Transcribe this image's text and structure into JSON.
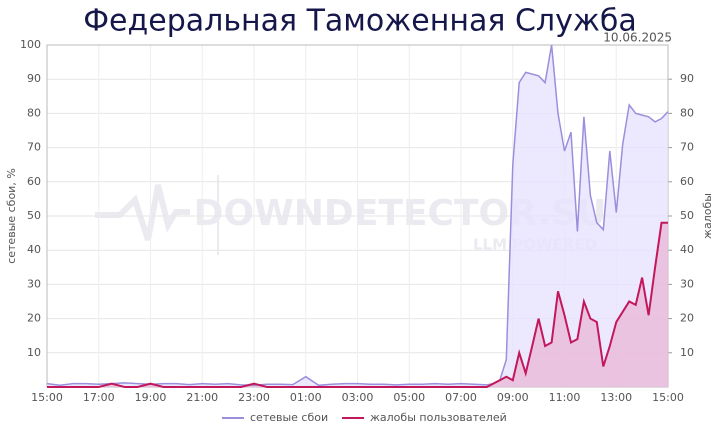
{
  "chart_data": {
    "type": "line",
    "title": "Федеральная Таможенная Служба",
    "date": "10.06.2025",
    "watermark": "DOWNDETECTOR.SU",
    "watermark_sub": "LLM POWERED",
    "ylabel": "сетевые сбои, %",
    "y2label": "жалобы",
    "xlim": [
      0,
      24
    ],
    "xticks": [
      {
        "value": 0,
        "label": "15:00"
      },
      {
        "value": 2,
        "label": "17:00"
      },
      {
        "value": 4,
        "label": "19:00"
      },
      {
        "value": 6,
        "label": "21:00"
      },
      {
        "value": 8,
        "label": "23:00"
      },
      {
        "value": 10,
        "label": "01:00"
      },
      {
        "value": 12,
        "label": "03:00"
      },
      {
        "value": 14,
        "label": "05:00"
      },
      {
        "value": 16,
        "label": "07:00"
      },
      {
        "value": 18,
        "label": "09:00"
      },
      {
        "value": 20,
        "label": "11:00"
      },
      {
        "value": 22,
        "label": "13:00"
      },
      {
        "value": 24,
        "label": "15:00"
      }
    ],
    "ylim": [
      0,
      100
    ],
    "yticks": [
      10,
      20,
      30,
      40,
      50,
      60,
      70,
      80,
      90,
      100
    ],
    "y2lim": [
      0,
      100
    ],
    "y2ticks": [
      10,
      20,
      30,
      40,
      50,
      60,
      70,
      80,
      90
    ],
    "grid": true,
    "legend": "bottom",
    "series": [
      {
        "name": "сетевые сбои",
        "color": "#9a8fdc",
        "fill": "#e6e1ff",
        "x": [
          0,
          0.5,
          1,
          1.5,
          2,
          2.5,
          3,
          3.5,
          4,
          4.5,
          5,
          5.5,
          6,
          6.5,
          7,
          7.5,
          8,
          8.5,
          9,
          9.5,
          10,
          10.5,
          11,
          11.5,
          12,
          12.5,
          13,
          13.5,
          14,
          14.5,
          15,
          15.5,
          16,
          16.5,
          17,
          17.25,
          17.5,
          17.75,
          18,
          18.25,
          18.5,
          18.75,
          19,
          19.25,
          19.5,
          19.75,
          20,
          20.25,
          20.5,
          20.75,
          21,
          21.25,
          21.5,
          21.75,
          22,
          22.25,
          22.5,
          22.75,
          23,
          23.25,
          23.5,
          23.75,
          24
        ],
        "values": [
          1,
          0.5,
          1,
          1,
          0.8,
          1,
          1.2,
          1,
          0.8,
          1,
          1,
          0.7,
          1,
          0.8,
          1,
          0.6,
          0.5,
          0.8,
          0.8,
          0.7,
          3,
          0.5,
          0.8,
          1,
          1,
          0.8,
          0.8,
          0.6,
          0.8,
          0.8,
          1,
          0.8,
          1,
          0.8,
          0.6,
          1,
          2,
          8,
          65,
          89,
          92,
          91.5,
          91,
          89,
          100,
          80,
          69,
          74.5,
          45.5,
          79,
          56,
          48,
          46,
          69,
          51,
          71,
          82.5,
          80,
          79.5,
          79,
          77.5,
          78.5,
          80.5
        ]
      },
      {
        "name": "жалобы пользователей",
        "color": "#c2185b",
        "fill": "#e9b6d6",
        "axis": "y2",
        "x": [
          0,
          0.5,
          1,
          1.5,
          2,
          2.5,
          3,
          3.5,
          4,
          4.5,
          5,
          5.5,
          6,
          6.5,
          7,
          7.5,
          8,
          8.5,
          9,
          9.5,
          10,
          10.5,
          11,
          11.5,
          12,
          12.5,
          13,
          13.5,
          14,
          14.5,
          15,
          15.5,
          16,
          16.5,
          17,
          17.25,
          17.5,
          17.75,
          18,
          18.25,
          18.5,
          18.75,
          19,
          19.25,
          19.5,
          19.75,
          20,
          20.25,
          20.5,
          20.75,
          21,
          21.25,
          21.5,
          21.75,
          22,
          22.25,
          22.5,
          22.75,
          23,
          23.25,
          23.5,
          23.75,
          24
        ],
        "values": [
          0,
          0,
          0,
          0,
          0,
          1,
          0,
          0,
          1,
          0,
          0,
          0,
          0,
          0,
          0,
          0,
          1,
          0,
          0,
          0,
          0,
          0,
          0,
          0,
          0,
          0,
          0,
          0,
          0,
          0,
          0,
          0,
          0,
          0,
          0,
          1,
          2,
          3,
          2,
          10,
          4,
          12,
          20,
          12,
          13,
          28,
          21,
          13,
          14,
          25,
          20,
          19,
          6,
          12,
          19,
          22,
          25,
          24,
          32,
          21,
          35,
          48,
          48
        ]
      }
    ]
  }
}
